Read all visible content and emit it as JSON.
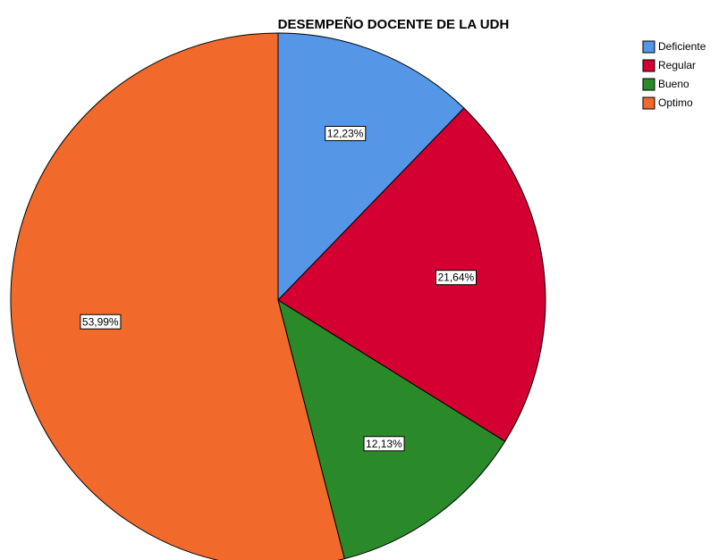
{
  "chart_data": {
    "type": "pie",
    "title": "DESEMPEÑO DOCENTE DE LA UDH",
    "categories": [
      "Deficiente",
      "Regular",
      "Bueno",
      "Optimo"
    ],
    "values": [
      12.23,
      21.64,
      12.13,
      53.99
    ],
    "value_labels": [
      "12,23%",
      "21,64%",
      "12,13%",
      "53,99%"
    ],
    "colors": [
      "#5596e6",
      "#d50032",
      "#2a8a2a",
      "#f26a2b"
    ],
    "legend": "top-right"
  }
}
